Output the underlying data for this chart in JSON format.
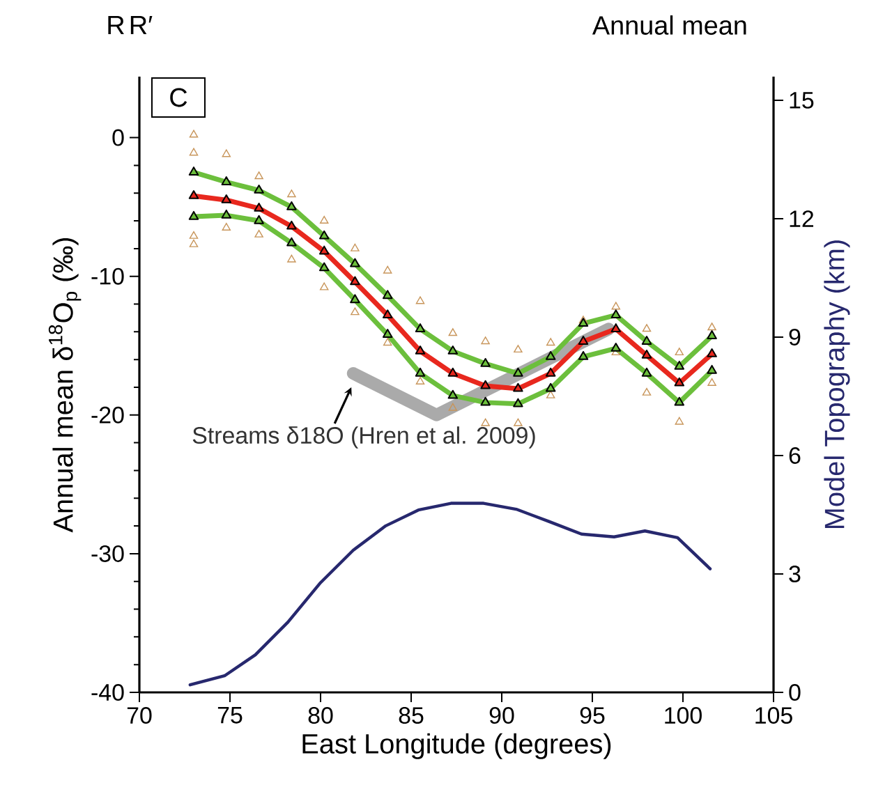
{
  "chart_data": {
    "type": "line",
    "title": "Annual mean",
    "xlabel": "East Longitude (degrees)",
    "ylabel": "Annual mean δ$^{18}$O$_{p}$ (‰)",
    "y2label": "Model Topography (km)",
    "annotations": [
      "R",
      "R′",
      "C",
      {
        "text": "Streams δ18O (Hren et al. 2009)",
        "x": 81.7,
        "y": -18
      }
    ],
    "xlim": [
      70,
      105
    ],
    "xticks": [
      70,
      75,
      80,
      85,
      90,
      95,
      100,
      105
    ],
    "ylim": [
      -40,
      4.4
    ],
    "yticks": [
      -40,
      -30,
      -20,
      -10,
      0
    ],
    "y2lim": [
      0,
      15.6
    ],
    "y2ticks": [
      0,
      3,
      6,
      9,
      12,
      15
    ],
    "marker": "triangle",
    "series": [
      {
        "color": "#aaaaaa",
        "marker": "none",
        "x": [
          81.8,
          86.4,
          95.9
        ],
        "values": [
          -17,
          -20,
          -13.8
        ]
      },
      {
        "type": "scatter",
        "color": "#c8955a",
        "x": [
          73,
          73,
          73,
          73,
          74.8,
          74.8,
          76.6,
          76.6,
          78.4,
          78.4,
          80.2,
          80.2,
          81.9,
          81.9,
          83.7,
          83.7,
          85.5,
          85.5,
          87.3,
          87.3,
          89.1,
          89.1,
          90.9,
          90.9,
          92.7,
          92.7,
          94.5,
          96.3,
          96.3,
          98.0,
          98.0,
          99.8,
          99.8,
          101.6,
          101.6
        ],
        "values": [
          0.2,
          -1.1,
          -7.1,
          -7.7,
          -1.2,
          -6.5,
          -2.8,
          -7.0,
          -4.1,
          -8.8,
          -6.0,
          -10.8,
          -8.0,
          -12.6,
          -9.6,
          -14.8,
          -11.8,
          -17.6,
          -14.1,
          -19.5,
          -14.7,
          -20.6,
          -15.3,
          -20.6,
          -14.8,
          -18.6,
          -13.2,
          -12.2,
          -15.5,
          -13.8,
          -18.4,
          -15.5,
          -20.5,
          -13.7,
          -17.7
        ]
      },
      {
        "color": "#6cbf3c",
        "x": [
          73,
          74.8,
          76.6,
          78.4,
          80.2,
          81.9,
          83.7,
          85.5,
          87.3,
          89.1,
          90.9,
          92.7,
          94.5,
          96.3,
          98.0,
          99.8,
          101.6
        ],
        "values": [
          -2.5,
          -3.2,
          -3.8,
          -5.0,
          -7.1,
          -9.1,
          -11.4,
          -13.8,
          -15.4,
          -16.3,
          -17.0,
          -15.8,
          -13.4,
          -12.8,
          -14.7,
          -16.5,
          -14.3
        ]
      },
      {
        "color": "#6cbf3c",
        "x": [
          73,
          74.8,
          76.6,
          78.4,
          80.2,
          81.9,
          83.7,
          85.5,
          87.3,
          89.1,
          90.9,
          92.7,
          94.5,
          96.3,
          98.0,
          99.8,
          101.6
        ],
        "values": [
          -5.7,
          -5.6,
          -6.0,
          -7.6,
          -9.4,
          -11.7,
          -14.2,
          -17.0,
          -18.6,
          -19.1,
          -19.2,
          -18.1,
          -15.8,
          -15.2,
          -17.0,
          -19.1,
          -16.8
        ]
      },
      {
        "color": "#e8281e",
        "x": [
          73,
          74.8,
          76.6,
          78.4,
          80.2,
          81.9,
          83.7,
          85.5,
          87.3,
          89.1,
          90.9,
          92.7,
          94.5,
          96.3,
          98.0,
          99.8,
          101.6
        ],
        "values": [
          -4.2,
          -4.5,
          -5.1,
          -6.4,
          -8.2,
          -10.4,
          -12.8,
          -15.4,
          -17.0,
          -17.9,
          -18.1,
          -17.0,
          -14.7,
          -13.8,
          -15.7,
          -17.7,
          -15.6
        ]
      },
      {
        "color": "#27286e",
        "marker": "none",
        "axis": "y2",
        "x": [
          72.8,
          74.7,
          76.4,
          78.2,
          80,
          81.8,
          83.6,
          85.4,
          87.2,
          89,
          90.8,
          92.6,
          94.4,
          96.2,
          97.9,
          99.7,
          101.5
        ],
        "values": [
          0.19,
          0.42,
          0.95,
          1.78,
          2.78,
          3.6,
          4.22,
          4.62,
          4.79,
          4.79,
          4.64,
          4.33,
          4.01,
          3.94,
          4.09,
          3.92,
          3.13
        ]
      }
    ]
  }
}
